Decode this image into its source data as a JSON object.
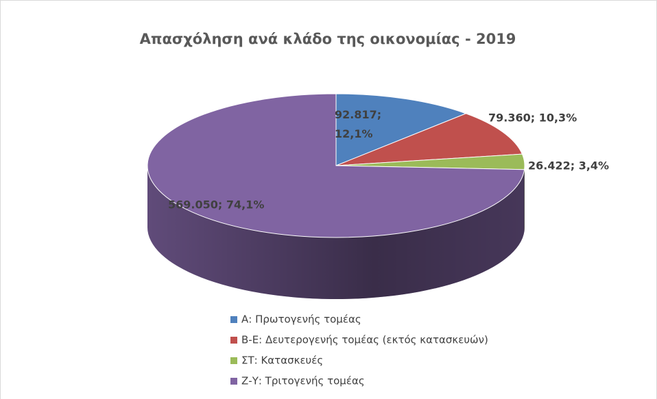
{
  "chart_data": {
    "type": "pie",
    "title": "Απασχόληση ανά κλάδο της οικονομίας - 2019",
    "categories": [
      "Α: Πρωτογενής τομέας",
      "Β-Ε: Δευτερογενής τομέας (εκτός κατασκευών)",
      "ΣΤ: Κατασκευές",
      "Ζ-Υ: Τριτογενής τομέας"
    ],
    "values": [
      92817,
      79360,
      26422,
      569050
    ],
    "value_labels": [
      "92.817; 12,1%",
      "79.360; 10,3%",
      "26.422; 3,4%",
      "569.050; 74,1%"
    ],
    "colors": [
      "#4f81bd",
      "#c0504d",
      "#9bbb59",
      "#8064a2"
    ],
    "legend": "bottom"
  }
}
